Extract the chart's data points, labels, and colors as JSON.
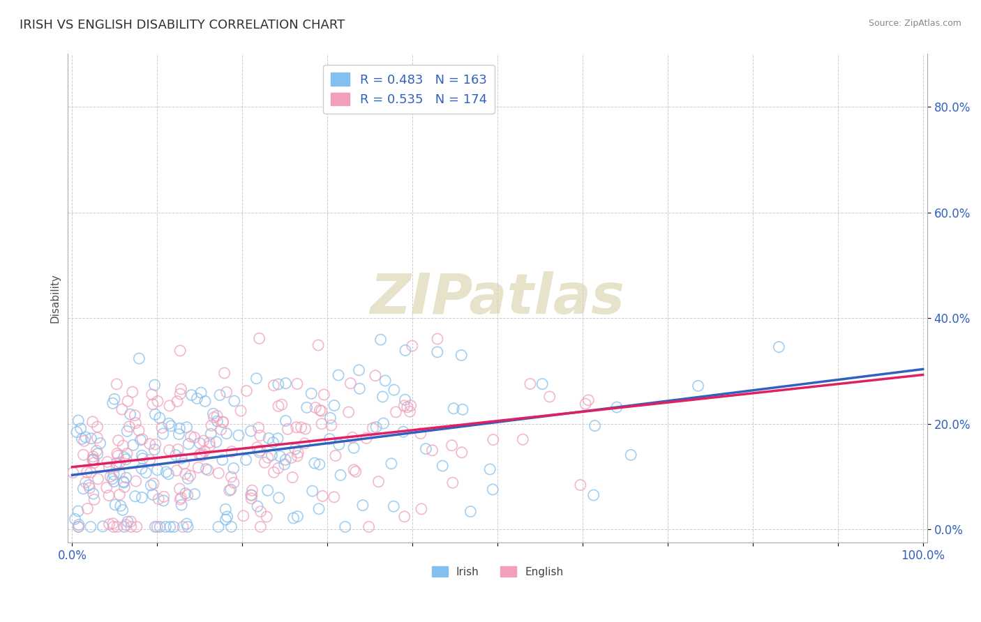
{
  "title": "IRISH VS ENGLISH DISABILITY CORRELATION CHART",
  "source": "Source: ZipAtlas.com",
  "ylabel": "Disability",
  "irish_R": 0.483,
  "irish_N": 163,
  "english_R": 0.535,
  "english_N": 174,
  "irish_color": "#85BFED",
  "english_color": "#F0A0BB",
  "irish_line_color": "#3060C0",
  "english_line_color": "#E02060",
  "legend_text_color": "#3060C0",
  "title_color": "#303030",
  "axis_label_color": "#505050",
  "tick_label_color": "#3060C0",
  "grid_color": "#C8C8C8",
  "watermark": "ZIPatlas",
  "watermark_color": "#D8CFA8",
  "background_color": "#FFFFFF"
}
